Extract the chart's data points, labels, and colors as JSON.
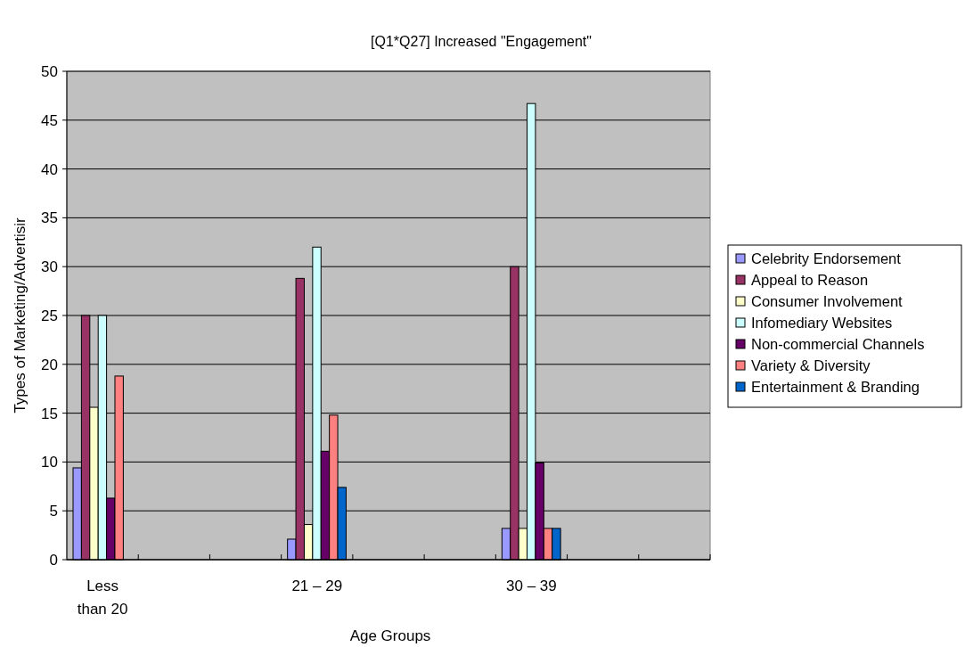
{
  "chart_data": {
    "type": "bar",
    "title": "[Q1*Q27] Increased \"Engagement\"",
    "xlabel": "Age Groups",
    "ylabel": "Types of Marketing/Advertisir",
    "categories": [
      "Less than 20",
      null,
      null,
      "21 – 29",
      null,
      null,
      "30 – 39",
      null,
      null
    ],
    "series": [
      {
        "name": "Celebrity Endorsement",
        "color": "#9999ff",
        "values": [
          9.4,
          null,
          null,
          2.1,
          null,
          null,
          3.2,
          null,
          null
        ]
      },
      {
        "name": "Appeal to Reason",
        "color": "#993366",
        "values": [
          25,
          null,
          null,
          28.8,
          null,
          null,
          30,
          null,
          null
        ]
      },
      {
        "name": "Consumer Involvement",
        "color": "#ffffcc",
        "values": [
          15.6,
          null,
          null,
          3.6,
          null,
          null,
          3.2,
          null,
          null
        ]
      },
      {
        "name": "Infomediary Websites",
        "color": "#ccffff",
        "values": [
          25,
          null,
          null,
          32,
          null,
          null,
          46.7,
          null,
          null
        ]
      },
      {
        "name": "Non-commercial Channels",
        "color": "#660066",
        "values": [
          6.3,
          null,
          null,
          11.1,
          null,
          null,
          9.9,
          null,
          null
        ]
      },
      {
        "name": "Variety & Diversity",
        "color": "#ff8080",
        "values": [
          18.8,
          null,
          null,
          14.8,
          null,
          null,
          3.2,
          null,
          null
        ]
      },
      {
        "name": "Entertainment & Branding",
        "color": "#0066cc",
        "values": [
          0,
          null,
          null,
          7.4,
          null,
          null,
          3.2,
          null,
          null
        ]
      }
    ],
    "ylim": [
      0,
      50
    ],
    "yticks": [
      0,
      5,
      10,
      15,
      20,
      25,
      30,
      35,
      40,
      45,
      50
    ],
    "grid": "y",
    "legend": "right"
  }
}
